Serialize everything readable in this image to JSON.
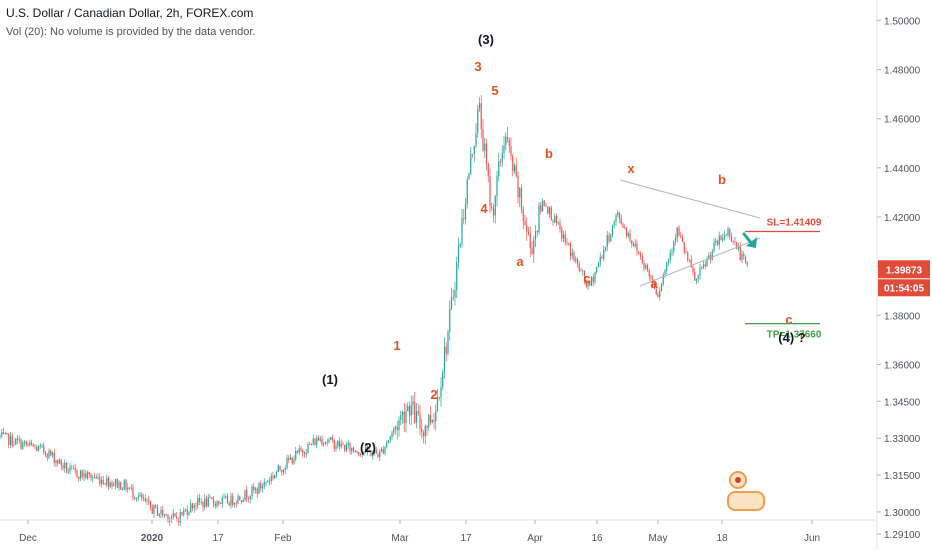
{
  "header": {
    "symbol_line": "U.S. Dollar / Canadian Dollar, 2h, FOREX.com",
    "volume_line": "Vol (20): No volume is provided by the data vendor."
  },
  "chart_data": {
    "type": "candlestick",
    "title": "U.S. Dollar / Canadian Dollar, 2h, FOREX.com",
    "ylim": [
      1.2845,
      1.5083
    ],
    "y_ticks": [
      "1.50000",
      "1.48000",
      "1.46000",
      "1.44000",
      "1.42000",
      "1.40000",
      "1.38000",
      "1.36000",
      "1.34500",
      "1.33000",
      "1.31500",
      "1.30000",
      "1.29100"
    ],
    "x_ticks": [
      "Dec",
      "2020",
      "17",
      "Feb",
      "Mar",
      "17",
      "Apr",
      "16",
      "May",
      "18",
      "Jun"
    ],
    "price_path": [
      [
        "Nov 28",
        1.3305
      ],
      [
        "Dec 6",
        1.3245
      ],
      [
        "Dec 12",
        1.3165
      ],
      [
        "Dec 20",
        1.3135
      ],
      [
        "Dec 27",
        1.3105
      ],
      [
        "Jan 3",
        1.3012
      ],
      [
        "Jan 8",
        1.297
      ],
      [
        "Jan 12",
        1.3035
      ],
      [
        "Jan 20",
        1.3045
      ],
      [
        "Jan 26",
        1.309
      ],
      [
        "Feb 3",
        1.3215
      ],
      [
        "Feb 10",
        1.33
      ],
      [
        "Feb 18",
        1.3255
      ],
      [
        "Feb 25",
        1.3235
      ],
      [
        "Mar 3",
        1.344
      ],
      [
        "Mar 6",
        1.3335
      ],
      [
        "Mar 9",
        1.341
      ],
      [
        "Mar 12",
        1.374
      ],
      [
        "Mar 16",
        1.43
      ],
      [
        "Mar 19",
        1.465
      ],
      [
        "Mar 22",
        1.421
      ],
      [
        "Mar 25",
        1.454
      ],
      [
        "Mar 31",
        1.407
      ],
      [
        "Apr 3",
        1.427
      ],
      [
        "Apr 9",
        1.408
      ],
      [
        "Apr 14",
        1.391
      ],
      [
        "Apr 21",
        1.421
      ],
      [
        "Apr 27",
        1.403
      ],
      [
        "May 1",
        1.389
      ],
      [
        "May 6",
        1.415
      ],
      [
        "May 11",
        1.3935
      ],
      [
        "May 16",
        1.408
      ],
      [
        "May 19",
        1.4145
      ],
      [
        "May 22",
        1.3987
      ]
    ],
    "last_price": "1.39873",
    "countdown": "01:54:05",
    "levels": [
      {
        "label": "SL=1.41409",
        "value": 1.41409,
        "color": "#e04b3a"
      },
      {
        "label": "TP=1.37660",
        "value": 1.3766,
        "color": "#43a047"
      }
    ],
    "wave_labels": [
      {
        "text": "(1)",
        "color": "#131722"
      },
      {
        "text": "(2)",
        "color": "#131722"
      },
      {
        "text": "(3)",
        "color": "#131722"
      },
      {
        "text": "(4) ?",
        "color": "#131722"
      },
      {
        "text": "1",
        "color": "#e65120"
      },
      {
        "text": "2",
        "color": "#e65120"
      },
      {
        "text": "3",
        "color": "#e65120"
      },
      {
        "text": "4",
        "color": "#e65120"
      },
      {
        "text": "5",
        "color": "#e65120"
      },
      {
        "text": "a",
        "color": "#e65120"
      },
      {
        "text": "b",
        "color": "#e65120"
      },
      {
        "text": "c",
        "color": "#e65120"
      },
      {
        "text": "x",
        "color": "#e65120"
      },
      {
        "text": "a",
        "color": "#e65120"
      },
      {
        "text": "b",
        "color": "#e65120"
      },
      {
        "text": "c",
        "color": "#e65120"
      }
    ],
    "colors": {
      "up": "#26a69a",
      "down": "#ef5350",
      "wave_major": "#131722",
      "wave_minor": "#e65120",
      "last_price_bg": "#e04b3a",
      "axis_text": "#50535e",
      "triangle": "#b2b5be"
    }
  }
}
